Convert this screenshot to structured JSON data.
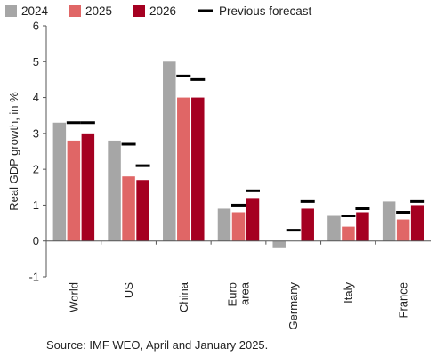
{
  "chart_data": {
    "type": "bar",
    "categories": [
      [
        "World"
      ],
      [
        "US"
      ],
      [
        "China"
      ],
      [
        "Euro",
        "area"
      ],
      [
        "Germany"
      ],
      [
        "Italy"
      ],
      [
        "France"
      ]
    ],
    "series": [
      {
        "name": "2024",
        "color": "#a6a6a6",
        "values": [
          3.3,
          2.8,
          5.0,
          0.9,
          -0.2,
          0.7,
          1.1
        ]
      },
      {
        "name": "2025",
        "color": "#e06666",
        "values": [
          2.8,
          1.8,
          4.0,
          0.8,
          0.0,
          0.4,
          0.6
        ]
      },
      {
        "name": "2026",
        "color": "#a50021",
        "values": [
          3.0,
          1.7,
          4.0,
          1.2,
          0.9,
          0.8,
          1.0
        ]
      }
    ],
    "previous_forecast": {
      "name": "Previous forecast",
      "color": "#000000",
      "values_2025": [
        3.3,
        2.7,
        4.6,
        1.0,
        0.3,
        0.7,
        0.8
      ],
      "values_2026": [
        3.3,
        2.1,
        4.5,
        1.4,
        1.1,
        0.9,
        1.1
      ]
    },
    "ylabel": "Real GDP growth, in %",
    "ylim": [
      -1,
      6
    ],
    "yticks": [
      -1,
      0,
      1,
      2,
      3,
      4,
      5,
      6
    ],
    "legend_position": "top",
    "grid": false
  },
  "source_note": "Source: IMF WEO, April and January 2025."
}
